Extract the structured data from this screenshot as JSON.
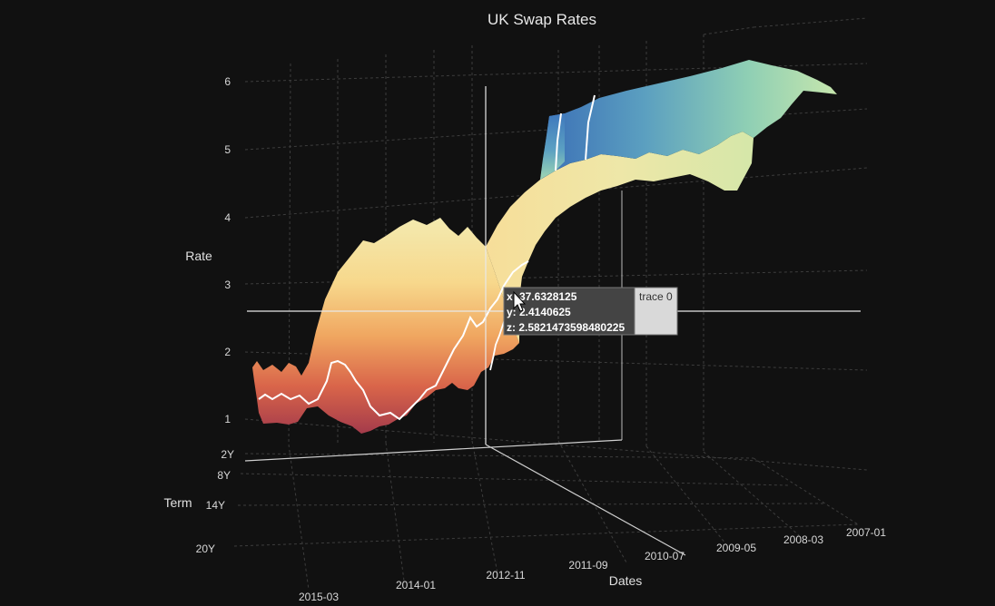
{
  "chart_data": {
    "type": "surface",
    "title": "UK Swap Rates",
    "xlabel": "Dates",
    "ylabel": "Term",
    "zlabel": "Rate",
    "x_ticks": [
      "2015-03",
      "2014-01",
      "2012-11",
      "2011-09",
      "2010-07",
      "2009-05",
      "2008-03",
      "2007-01"
    ],
    "y_ticks": [
      "2Y",
      "8Y",
      "14Y",
      "20Y"
    ],
    "z_ticks": [
      "1",
      "2",
      "3",
      "4",
      "5",
      "6"
    ],
    "zlim": [
      1,
      6
    ],
    "colorscale": "Spectral",
    "series": [
      {
        "term": "2Y",
        "dates": [
          "2015-03",
          "2014-01",
          "2012-11",
          "2011-09",
          "2010-07",
          "2009-05",
          "2008-03",
          "2007-01"
        ],
        "values": [
          0.9,
          0.8,
          0.7,
          1.4,
          1.6,
          2.3,
          4.5,
          5.8
        ]
      }
    ],
    "hover": {
      "x": "x: 37.6328125",
      "y": "y: 2.4140625",
      "z": "z: 2.5821473598480225",
      "trace": "trace 0"
    }
  }
}
